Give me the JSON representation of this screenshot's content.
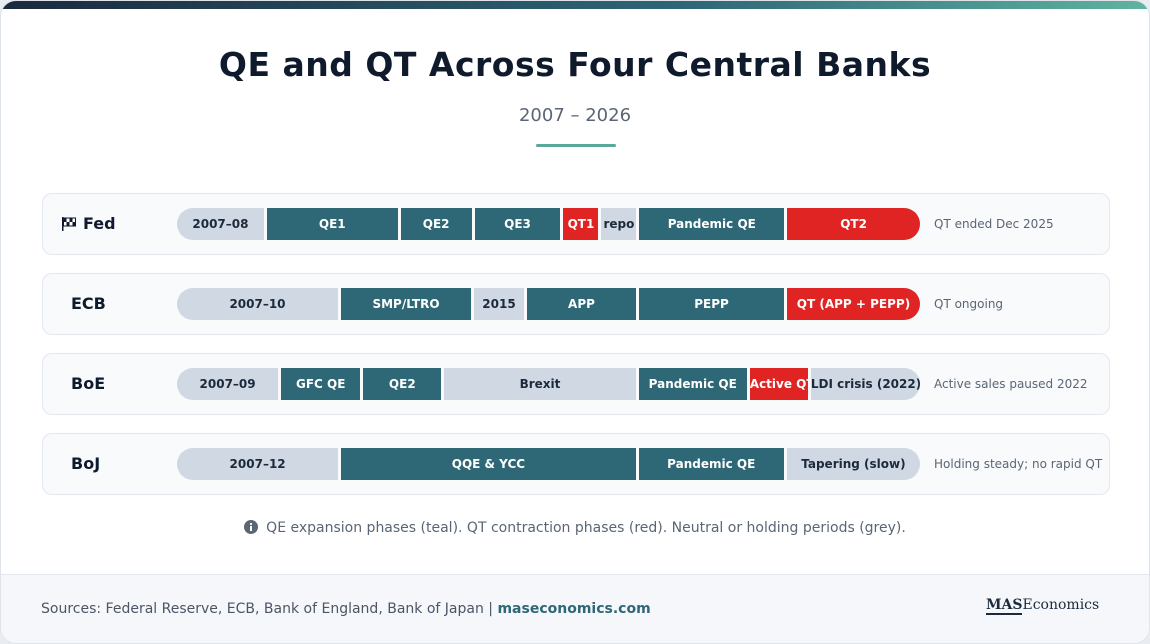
{
  "header": {
    "title": "QE and QT Across Four Central Banks",
    "subtitle": "2007 – 2026"
  },
  "rows": [
    {
      "bank": "Fed",
      "note": "QT ended Dec 2025",
      "phases": [
        {
          "label": "2007–08",
          "color": "#cfd8e3"
        },
        {
          "label": "QE1",
          "color": "#2e6776"
        },
        {
          "label": "QE2",
          "color": "#2e6776"
        },
        {
          "label": "QE3",
          "color": "#2e6776"
        },
        {
          "label": "QT1",
          "color": "#e02424"
        },
        {
          "label": "repo",
          "color": "#cfd8e3"
        },
        {
          "label": "Pandemic QE",
          "color": "#2e6776"
        },
        {
          "label": "QT2",
          "color": "#e02424"
        }
      ]
    },
    {
      "bank": "ECB",
      "note": "QT ongoing",
      "phases": [
        {
          "label": "2007–10",
          "color": "#cfd8e3"
        },
        {
          "label": "SMP/LTRO",
          "color": "#2e6776"
        },
        {
          "label": "2015",
          "color": "#cfd8e3"
        },
        {
          "label": "APP",
          "color": "#2e6776"
        },
        {
          "label": "PEPP",
          "color": "#2e6776"
        },
        {
          "label": "QT (APP + PEPP)",
          "color": "#e02424"
        }
      ]
    },
    {
      "bank": "BoE",
      "note": "Active sales paused 2022",
      "phases": [
        {
          "label": "2007–09",
          "color": "#cfd8e3"
        },
        {
          "label": "GFC QE",
          "color": "#2e6776"
        },
        {
          "label": "QE2",
          "color": "#2e6776"
        },
        {
          "label": "Brexit",
          "color": "#cfd8e3"
        },
        {
          "label": "Pandemic QE",
          "color": "#2e6776"
        },
        {
          "label": "Active QT",
          "color": "#e02424"
        },
        {
          "label": "LDI crisis (2022)",
          "color": "#cfd8e3"
        }
      ]
    },
    {
      "bank": "BoJ",
      "note": "Holding steady; no rapid QT",
      "phases": [
        {
          "label": "2007–12",
          "color": "#cfd8e3"
        },
        {
          "label": "QQE & YCC",
          "color": "#2e6776"
        },
        {
          "label": "Pandemic QE",
          "color": "#2e6776"
        },
        {
          "label": "Tapering (slow)",
          "color": "#cfd8e3"
        }
      ]
    }
  ],
  "legend": "QE expansion phases (teal). QT contraction phases (red). Neutral or holding periods (grey).",
  "footer": {
    "sources": "Sources: Federal Reserve, ECB, Bank of England, Bank of Japan |",
    "site": "maseconomics.com",
    "logo_mark": "MAS",
    "logo_text": "Economics"
  }
}
